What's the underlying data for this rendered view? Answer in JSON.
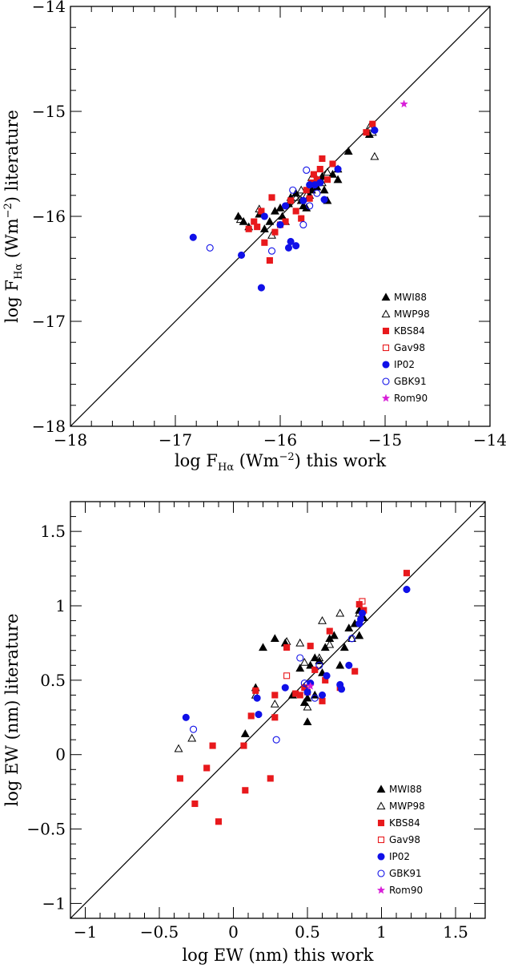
{
  "chart_data": [
    {
      "type": "scatter",
      "xlabel": "log F_Hα (Wm⁻²) this work",
      "xlabel_parts": {
        "prefix": "log F",
        "sub": "Hα",
        "unit_a": " (Wm",
        "unit_sup": "−2",
        "unit_b": ") this work"
      },
      "ylabel": "log F_Hα (Wm⁻²) literature",
      "ylabel_parts": {
        "prefix": "log F",
        "sub": "Hα",
        "unit_a": " (Wm",
        "unit_sup": "−2",
        "unit_b": ") literature"
      },
      "xlim": [
        -18,
        -14
      ],
      "ylim": [
        -18,
        -14
      ],
      "x_ticks": [
        -18,
        -17,
        -16,
        -15,
        -14
      ],
      "x_tick_labels": [
        "−18",
        "−17",
        "−16",
        "−15",
        "−14"
      ],
      "y_ticks": [
        -18,
        -17,
        -16,
        -15,
        -14
      ],
      "y_tick_labels": [
        "−18",
        "−17",
        "−16",
        "−15",
        "−14"
      ],
      "minor_step": 0.2,
      "identity_line": true,
      "legend_position": "bottom-right",
      "series": [
        {
          "name": "MWI88",
          "marker": "triangle-filled",
          "color": "#000000",
          "points": [
            [
              -16.4,
              -16.0
            ],
            [
              -16.35,
              -16.05
            ],
            [
              -16.2,
              -15.98
            ],
            [
              -16.15,
              -16.12
            ],
            [
              -16.1,
              -16.05
            ],
            [
              -16.05,
              -15.95
            ],
            [
              -16.0,
              -15.92
            ],
            [
              -15.98,
              -16.0
            ],
            [
              -15.92,
              -15.88
            ],
            [
              -15.9,
              -15.82
            ],
            [
              -15.85,
              -15.78
            ],
            [
              -15.8,
              -15.85
            ],
            [
              -15.78,
              -15.9
            ],
            [
              -15.75,
              -15.92
            ],
            [
              -15.72,
              -15.8
            ],
            [
              -15.7,
              -15.75
            ],
            [
              -15.68,
              -15.7
            ],
            [
              -15.65,
              -15.72
            ],
            [
              -15.6,
              -15.62
            ],
            [
              -15.58,
              -15.75
            ],
            [
              -15.55,
              -15.85
            ],
            [
              -15.5,
              -15.6
            ],
            [
              -15.45,
              -15.55
            ],
            [
              -15.45,
              -15.65
            ],
            [
              -15.35,
              -15.38
            ],
            [
              -15.15,
              -15.22
            ],
            [
              -16.3,
              -16.1
            ]
          ]
        },
        {
          "name": "MWP98",
          "marker": "triangle-open",
          "color": "#000000",
          "points": [
            [
              -16.38,
              -16.03
            ],
            [
              -16.2,
              -15.93
            ],
            [
              -16.08,
              -16.18
            ],
            [
              -15.95,
              -16.05
            ],
            [
              -15.85,
              -15.82
            ],
            [
              -15.8,
              -15.75
            ],
            [
              -15.75,
              -15.8
            ],
            [
              -15.7,
              -15.63
            ],
            [
              -15.65,
              -15.65
            ],
            [
              -15.6,
              -15.68
            ],
            [
              -15.55,
              -15.58
            ],
            [
              -15.15,
              -15.15
            ],
            [
              -15.12,
              -15.2
            ],
            [
              -15.1,
              -15.43
            ]
          ]
        },
        {
          "name": "KBS84",
          "marker": "square-filled",
          "color": "#e8191c",
          "points": [
            [
              -16.3,
              -16.12
            ],
            [
              -16.25,
              -16.05
            ],
            [
              -16.22,
              -16.1
            ],
            [
              -16.18,
              -15.95
            ],
            [
              -16.15,
              -16.25
            ],
            [
              -16.1,
              -16.42
            ],
            [
              -16.08,
              -15.82
            ],
            [
              -16.05,
              -16.15
            ],
            [
              -16.0,
              -16.08
            ],
            [
              -15.95,
              -16.05
            ],
            [
              -15.9,
              -15.85
            ],
            [
              -15.85,
              -15.95
            ],
            [
              -15.8,
              -16.02
            ],
            [
              -15.75,
              -15.75
            ],
            [
              -15.72,
              -15.83
            ],
            [
              -15.7,
              -15.68
            ],
            [
              -15.68,
              -15.6
            ],
            [
              -15.65,
              -15.65
            ],
            [
              -15.62,
              -15.55
            ],
            [
              -15.6,
              -15.45
            ],
            [
              -15.55,
              -15.65
            ],
            [
              -15.5,
              -15.5
            ],
            [
              -15.18,
              -15.2
            ],
            [
              -15.12,
              -15.12
            ]
          ]
        },
        {
          "name": "Gav98",
          "marker": "square-open",
          "color": "#e8191c",
          "points": []
        },
        {
          "name": "IP02",
          "marker": "circle-filled",
          "color": "#1010e8",
          "points": [
            [
              -16.83,
              -16.2
            ],
            [
              -16.37,
              -16.37
            ],
            [
              -16.18,
              -16.68
            ],
            [
              -16.15,
              -16.0
            ],
            [
              -16.0,
              -16.08
            ],
            [
              -15.92,
              -16.3
            ],
            [
              -15.95,
              -15.9
            ],
            [
              -15.9,
              -16.24
            ],
            [
              -15.85,
              -16.28
            ],
            [
              -15.78,
              -15.85
            ],
            [
              -15.72,
              -15.7
            ],
            [
              -15.67,
              -15.7
            ],
            [
              -15.62,
              -15.68
            ],
            [
              -15.58,
              -15.84
            ],
            [
              -15.45,
              -15.55
            ],
            [
              -15.1,
              -15.18
            ]
          ]
        },
        {
          "name": "GBK91",
          "marker": "circle-open",
          "color": "#1010e8",
          "points": [
            [
              -16.67,
              -16.3
            ],
            [
              -16.08,
              -16.33
            ],
            [
              -15.88,
              -15.75
            ],
            [
              -15.78,
              -16.08
            ],
            [
              -15.75,
              -15.56
            ],
            [
              -15.72,
              -15.9
            ],
            [
              -15.65,
              -15.78
            ]
          ]
        },
        {
          "name": "Rom90",
          "marker": "star",
          "color": "#d81ed8",
          "points": [
            [
              -14.82,
              -14.93
            ]
          ]
        }
      ]
    },
    {
      "type": "scatter",
      "xlabel": "log EW (nm) this work",
      "ylabel": "log EW (nm) literature",
      "xlim": [
        -1.1,
        1.7
      ],
      "ylim": [
        -1.1,
        1.7
      ],
      "x_ticks": [
        -1,
        -0.5,
        0,
        0.5,
        1,
        1.5
      ],
      "x_tick_labels": [
        "−1",
        "−0.5",
        "0",
        "0.5",
        "1",
        "1.5"
      ],
      "y_ticks": [
        -1,
        -0.5,
        0,
        0.5,
        1,
        1.5
      ],
      "y_tick_labels": [
        "−1",
        "−0.5",
        "0",
        "0.5",
        "1",
        "1.5"
      ],
      "minor_step": 0.1,
      "identity_line": true,
      "legend_position": "bottom-right",
      "series": [
        {
          "name": "MWI88",
          "marker": "triangle-filled",
          "color": "#000000",
          "points": [
            [
              0.08,
              0.14
            ],
            [
              0.15,
              0.45
            ],
            [
              0.2,
              0.72
            ],
            [
              0.28,
              0.78
            ],
            [
              0.35,
              0.75
            ],
            [
              0.4,
              0.4
            ],
            [
              0.45,
              0.58
            ],
            [
              0.48,
              0.35
            ],
            [
              0.5,
              0.22
            ],
            [
              0.52,
              0.6
            ],
            [
              0.55,
              0.65
            ],
            [
              0.58,
              0.63
            ],
            [
              0.6,
              0.55
            ],
            [
              0.62,
              0.72
            ],
            [
              0.65,
              0.78
            ],
            [
              0.68,
              0.8
            ],
            [
              0.72,
              0.6
            ],
            [
              0.75,
              0.72
            ],
            [
              0.78,
              0.85
            ],
            [
              0.82,
              0.88
            ],
            [
              0.85,
              0.8
            ],
            [
              0.88,
              0.92
            ],
            [
              0.85,
              0.97
            ],
            [
              0.5,
              0.38
            ],
            [
              0.55,
              0.4
            ]
          ]
        },
        {
          "name": "MWP98",
          "marker": "triangle-open",
          "color": "#000000",
          "points": [
            [
              -0.37,
              0.04
            ],
            [
              -0.28,
              0.11
            ],
            [
              0.15,
              0.4
            ],
            [
              0.28,
              0.34
            ],
            [
              0.36,
              0.76
            ],
            [
              0.45,
              0.75
            ],
            [
              0.48,
              0.62
            ],
            [
              0.5,
              0.32
            ],
            [
              0.58,
              0.65
            ],
            [
              0.6,
              0.9
            ],
            [
              0.65,
              0.74
            ],
            [
              0.72,
              0.95
            ],
            [
              0.8,
              0.78
            ],
            [
              0.85,
              0.95
            ]
          ]
        },
        {
          "name": "KBS84",
          "marker": "square-filled",
          "color": "#e8191c",
          "points": [
            [
              -0.36,
              -0.16
            ],
            [
              -0.26,
              -0.33
            ],
            [
              -0.18,
              -0.09
            ],
            [
              -0.14,
              0.06
            ],
            [
              -0.1,
              -0.45
            ],
            [
              0.07,
              0.06
            ],
            [
              0.08,
              -0.24
            ],
            [
              0.12,
              0.26
            ],
            [
              0.15,
              0.43
            ],
            [
              0.25,
              -0.16
            ],
            [
              0.28,
              0.4
            ],
            [
              0.28,
              0.25
            ],
            [
              0.36,
              0.72
            ],
            [
              0.42,
              0.41
            ],
            [
              0.45,
              0.4
            ],
            [
              0.48,
              0.45
            ],
            [
              0.5,
              0.42
            ],
            [
              0.52,
              0.73
            ],
            [
              0.55,
              0.57
            ],
            [
              0.6,
              0.36
            ],
            [
              0.62,
              0.5
            ],
            [
              0.65,
              0.83
            ],
            [
              0.72,
              0.45
            ],
            [
              0.82,
              0.56
            ],
            [
              0.85,
              1.01
            ],
            [
              0.88,
              0.97
            ],
            [
              1.17,
              1.22
            ]
          ]
        },
        {
          "name": "Gav98",
          "marker": "square-open",
          "color": "#e8191c",
          "points": [
            [
              0.36,
              0.53
            ],
            [
              0.87,
              1.03
            ]
          ]
        },
        {
          "name": "IP02",
          "marker": "circle-filled",
          "color": "#1010e8",
          "points": [
            [
              -0.32,
              0.25
            ],
            [
              0.16,
              0.38
            ],
            [
              0.17,
              0.27
            ],
            [
              0.35,
              0.45
            ],
            [
              0.5,
              0.42
            ],
            [
              0.52,
              0.48
            ],
            [
              0.6,
              0.4
            ],
            [
              0.63,
              0.53
            ],
            [
              0.72,
              0.47
            ],
            [
              0.73,
              0.44
            ],
            [
              0.78,
              0.6
            ],
            [
              0.85,
              0.88
            ],
            [
              0.86,
              0.91
            ],
            [
              0.87,
              0.95
            ],
            [
              1.17,
              1.11
            ]
          ]
        },
        {
          "name": "GBK91",
          "marker": "circle-open",
          "color": "#1010e8",
          "points": [
            [
              -0.27,
              0.17
            ],
            [
              0.29,
              0.1
            ],
            [
              0.45,
              0.65
            ],
            [
              0.48,
              0.48
            ],
            [
              0.5,
              0.47
            ],
            [
              0.55,
              0.38
            ],
            [
              0.58,
              0.6
            ],
            [
              0.8,
              0.78
            ]
          ]
        },
        {
          "name": "Rom90",
          "marker": "star",
          "color": "#d81ed8",
          "points": [
            [
              0.52,
              0.46
            ]
          ]
        }
      ]
    }
  ]
}
